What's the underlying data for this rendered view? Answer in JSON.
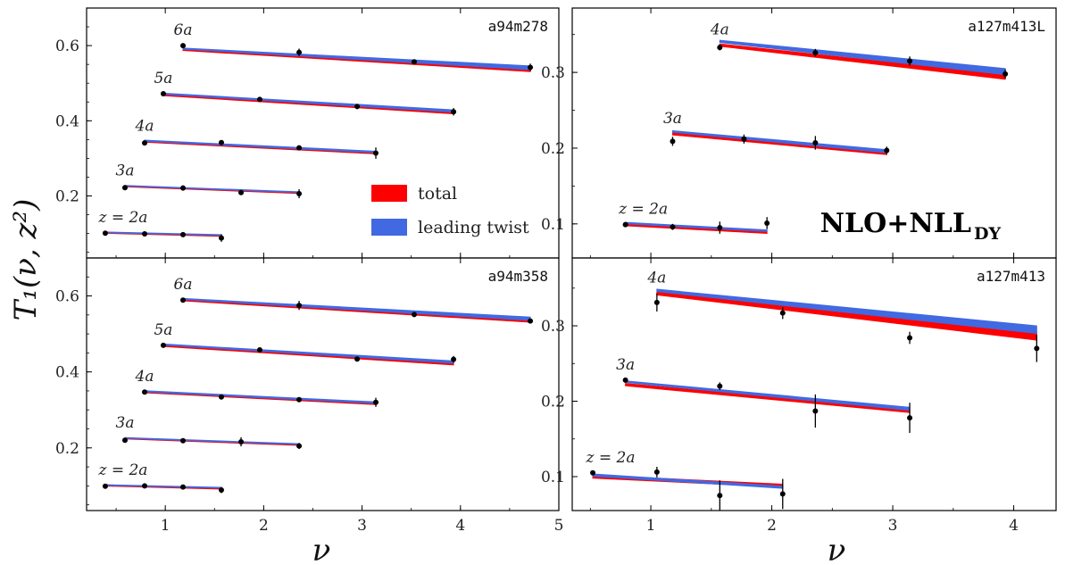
{
  "figure": {
    "x_axis_label": "ν",
    "y_axis_label": "T₁(ν, z²)",
    "method_label_main": "NLO+NLL",
    "method_label_sub": "DY",
    "legend": [
      {
        "label": "total",
        "color": "#ff0000"
      },
      {
        "label": "leading twist",
        "color": "#4169e1"
      }
    ],
    "colors": {
      "total": "#ff0000",
      "leading_twist": "#4169e1",
      "data": "#000000",
      "frame": "#000000"
    }
  },
  "chart_data": [
    {
      "type": "line",
      "panel": "a94m278",
      "ensemble_label": "a94m278",
      "xlim": [
        0.2,
        5.0
      ],
      "ylim": [
        0.035,
        0.7
      ],
      "yticks": [
        0.2,
        0.4,
        0.6
      ],
      "ytick_labels": [
        "0.2",
        "0.4",
        "0.6"
      ],
      "xticks": [],
      "xtick_labels": [],
      "series": [
        {
          "z_label": "z = 2a",
          "points": [
            {
              "x": 0.39,
              "y": 0.101,
              "err": 0.003
            },
            {
              "x": 0.79,
              "y": 0.099,
              "err": 0.003
            },
            {
              "x": 1.18,
              "y": 0.097,
              "err": 0.004
            },
            {
              "x": 1.57,
              "y": 0.088,
              "err": 0.01
            }
          ],
          "total": {
            "x": [
              0.39,
              1.57
            ],
            "y": [
              0.102,
              0.094
            ],
            "w": [
              0.003,
              0.003
            ]
          },
          "leading_twist": {
            "x": [
              0.39,
              1.57
            ],
            "y": [
              0.103,
              0.096
            ],
            "w": [
              0.002,
              0.002
            ]
          }
        },
        {
          "z_label": "3a",
          "points": [
            {
              "x": 0.59,
              "y": 0.222,
              "err": 0.004
            },
            {
              "x": 1.18,
              "y": 0.221,
              "err": 0.007
            },
            {
              "x": 1.77,
              "y": 0.209,
              "err": 0.004
            },
            {
              "x": 2.36,
              "y": 0.206,
              "err": 0.012
            }
          ],
          "total": {
            "x": [
              0.59,
              2.36
            ],
            "y": [
              0.226,
              0.208
            ],
            "w": [
              0.003,
              0.003
            ]
          },
          "leading_twist": {
            "x": [
              0.59,
              2.36
            ],
            "y": [
              0.227,
              0.21
            ],
            "w": [
              0.002,
              0.002
            ]
          }
        },
        {
          "z_label": "4a",
          "points": [
            {
              "x": 0.79,
              "y": 0.341,
              "err": 0.004
            },
            {
              "x": 1.57,
              "y": 0.342,
              "err": 0.005
            },
            {
              "x": 2.36,
              "y": 0.328,
              "err": 0.004
            },
            {
              "x": 3.14,
              "y": 0.314,
              "err": 0.015
            }
          ],
          "total": {
            "x": [
              0.79,
              3.14
            ],
            "y": [
              0.345,
              0.314
            ],
            "w": [
              0.004,
              0.004
            ]
          },
          "leading_twist": {
            "x": [
              0.79,
              3.14
            ],
            "y": [
              0.347,
              0.317
            ],
            "w": [
              0.003,
              0.004
            ]
          }
        },
        {
          "z_label": "5a",
          "points": [
            {
              "x": 0.98,
              "y": 0.472,
              "err": 0.004
            },
            {
              "x": 1.96,
              "y": 0.457,
              "err": 0.004
            },
            {
              "x": 2.95,
              "y": 0.438,
              "err": 0.007
            },
            {
              "x": 3.93,
              "y": 0.424,
              "err": 0.01
            }
          ],
          "total": {
            "x": [
              0.98,
              3.93
            ],
            "y": [
              0.469,
              0.421
            ],
            "w": [
              0.004,
              0.005
            ]
          },
          "leading_twist": {
            "x": [
              0.98,
              3.93
            ],
            "y": [
              0.472,
              0.426
            ],
            "w": [
              0.003,
              0.006
            ]
          }
        },
        {
          "z_label": "6a",
          "points": [
            {
              "x": 1.18,
              "y": 0.6,
              "err": 0.004
            },
            {
              "x": 2.36,
              "y": 0.582,
              "err": 0.01
            },
            {
              "x": 3.53,
              "y": 0.557,
              "err": 0.006
            },
            {
              "x": 4.71,
              "y": 0.542,
              "err": 0.01
            }
          ],
          "total": {
            "x": [
              1.18,
              4.71
            ],
            "y": [
              0.589,
              0.534
            ],
            "w": [
              0.004,
              0.006
            ]
          },
          "leading_twist": {
            "x": [
              1.18,
              4.71
            ],
            "y": [
              0.592,
              0.541
            ],
            "w": [
              0.003,
              0.01
            ]
          }
        }
      ]
    },
    {
      "type": "line",
      "panel": "a127m413L",
      "ensemble_label": "a127m413L",
      "xlim": [
        0.35,
        4.35
      ],
      "ylim": [
        0.055,
        0.385
      ],
      "yticks": [
        0.1,
        0.2,
        0.3
      ],
      "ytick_labels": [
        "0.1",
        "0.2",
        "0.3"
      ],
      "xticks": [],
      "xtick_labels": [],
      "series": [
        {
          "z_label": "z = 2a",
          "points": [
            {
              "x": 0.79,
              "y": 0.099,
              "err": 0.003
            },
            {
              "x": 1.18,
              "y": 0.096,
              "err": 0.004
            },
            {
              "x": 1.57,
              "y": 0.095,
              "err": 0.008
            },
            {
              "x": 1.96,
              "y": 0.101,
              "err": 0.008
            }
          ],
          "total": {
            "x": [
              0.79,
              1.96
            ],
            "y": [
              0.099,
              0.089
            ],
            "w": [
              0.003,
              0.003
            ]
          },
          "leading_twist": {
            "x": [
              0.79,
              1.96
            ],
            "y": [
              0.101,
              0.091
            ],
            "w": [
              0.002,
              0.002
            ]
          }
        },
        {
          "z_label": "3a",
          "points": [
            {
              "x": 1.18,
              "y": 0.209,
              "err": 0.006
            },
            {
              "x": 1.77,
              "y": 0.212,
              "err": 0.006
            },
            {
              "x": 2.36,
              "y": 0.207,
              "err": 0.009
            },
            {
              "x": 2.95,
              "y": 0.197,
              "err": 0.005
            }
          ],
          "total": {
            "x": [
              1.18,
              2.95
            ],
            "y": [
              0.219,
              0.193
            ],
            "w": [
              0.003,
              0.003
            ]
          },
          "leading_twist": {
            "x": [
              1.18,
              2.95
            ],
            "y": [
              0.222,
              0.196
            ],
            "w": [
              0.002,
              0.004
            ]
          }
        },
        {
          "z_label": "4a",
          "points": [
            {
              "x": 1.57,
              "y": 0.333,
              "err": 0.004
            },
            {
              "x": 2.36,
              "y": 0.326,
              "err": 0.005
            },
            {
              "x": 3.14,
              "y": 0.315,
              "err": 0.006
            },
            {
              "x": 3.93,
              "y": 0.298,
              "err": 0.006
            }
          ],
          "total": {
            "x": [
              1.57,
              3.93
            ],
            "y": [
              0.336,
              0.294
            ],
            "w": [
              0.003,
              0.006
            ]
          },
          "leading_twist": {
            "x": [
              1.57,
              3.93
            ],
            "y": [
              0.341,
              0.301
            ],
            "w": [
              0.003,
              0.008
            ]
          }
        }
      ]
    },
    {
      "type": "line",
      "panel": "a94m358",
      "ensemble_label": "a94m358",
      "xlim": [
        0.2,
        5.0
      ],
      "ylim": [
        0.035,
        0.7
      ],
      "yticks": [
        0.2,
        0.4,
        0.6
      ],
      "ytick_labels": [
        "0.2",
        "0.4",
        "0.6"
      ],
      "xticks": [
        1,
        2,
        3,
        4,
        5
      ],
      "xtick_labels": [
        "1",
        "2",
        "3",
        "4",
        "5"
      ],
      "series": [
        {
          "z_label": "z = 2a",
          "points": [
            {
              "x": 0.39,
              "y": 0.099,
              "err": 0.003
            },
            {
              "x": 0.79,
              "y": 0.1,
              "err": 0.003
            },
            {
              "x": 1.18,
              "y": 0.097,
              "err": 0.003
            },
            {
              "x": 1.57,
              "y": 0.089,
              "err": 0.008
            }
          ],
          "total": {
            "x": [
              0.39,
              1.57
            ],
            "y": [
              0.101,
              0.093
            ],
            "w": [
              0.003,
              0.003
            ]
          },
          "leading_twist": {
            "x": [
              0.39,
              1.57
            ],
            "y": [
              0.102,
              0.095
            ],
            "w": [
              0.002,
              0.002
            ]
          }
        },
        {
          "z_label": "3a",
          "points": [
            {
              "x": 0.59,
              "y": 0.22,
              "err": 0.003
            },
            {
              "x": 1.18,
              "y": 0.219,
              "err": 0.004
            },
            {
              "x": 1.77,
              "y": 0.216,
              "err": 0.012
            },
            {
              "x": 2.36,
              "y": 0.205,
              "err": 0.008
            }
          ],
          "total": {
            "x": [
              0.59,
              2.36
            ],
            "y": [
              0.225,
              0.208
            ],
            "w": [
              0.003,
              0.003
            ]
          },
          "leading_twist": {
            "x": [
              0.59,
              2.36
            ],
            "y": [
              0.226,
              0.21
            ],
            "w": [
              0.002,
              0.002
            ]
          }
        },
        {
          "z_label": "4a",
          "points": [
            {
              "x": 0.79,
              "y": 0.347,
              "err": 0.003
            },
            {
              "x": 1.57,
              "y": 0.334,
              "err": 0.004
            },
            {
              "x": 2.36,
              "y": 0.327,
              "err": 0.004
            },
            {
              "x": 3.14,
              "y": 0.32,
              "err": 0.012
            }
          ],
          "total": {
            "x": [
              0.79,
              3.14
            ],
            "y": [
              0.347,
              0.316
            ],
            "w": [
              0.004,
              0.004
            ]
          },
          "leading_twist": {
            "x": [
              0.79,
              3.14
            ],
            "y": [
              0.349,
              0.319
            ],
            "w": [
              0.003,
              0.004
            ]
          }
        },
        {
          "z_label": "5a",
          "points": [
            {
              "x": 0.98,
              "y": 0.47,
              "err": 0.003
            },
            {
              "x": 1.96,
              "y": 0.458,
              "err": 0.003
            },
            {
              "x": 2.95,
              "y": 0.434,
              "err": 0.006
            },
            {
              "x": 3.93,
              "y": 0.433,
              "err": 0.009
            }
          ],
          "total": {
            "x": [
              0.98,
              3.93
            ],
            "y": [
              0.469,
              0.421
            ],
            "w": [
              0.004,
              0.005
            ]
          },
          "leading_twist": {
            "x": [
              0.98,
              3.93
            ],
            "y": [
              0.472,
              0.426
            ],
            "w": [
              0.003,
              0.006
            ]
          }
        },
        {
          "z_label": "6a",
          "points": [
            {
              "x": 1.18,
              "y": 0.589,
              "err": 0.004
            },
            {
              "x": 2.36,
              "y": 0.575,
              "err": 0.012
            },
            {
              "x": 3.53,
              "y": 0.551,
              "err": 0.006
            },
            {
              "x": 4.71,
              "y": 0.534,
              "err": 0.005
            }
          ],
          "total": {
            "x": [
              1.18,
              4.71
            ],
            "y": [
              0.589,
              0.534
            ],
            "w": [
              0.004,
              0.006
            ]
          },
          "leading_twist": {
            "x": [
              1.18,
              4.71
            ],
            "y": [
              0.592,
              0.54
            ],
            "w": [
              0.003,
              0.009
            ]
          }
        }
      ]
    },
    {
      "type": "line",
      "panel": "a127m413",
      "ensemble_label": "a127m413",
      "xlim": [
        0.35,
        4.35
      ],
      "ylim": [
        0.055,
        0.39
      ],
      "yticks": [
        0.1,
        0.2,
        0.3
      ],
      "ytick_labels": [
        "0.1",
        "0.2",
        "0.3"
      ],
      "xticks": [
        1,
        2,
        3,
        4
      ],
      "xtick_labels": [
        "1",
        "2",
        "3",
        "4"
      ],
      "series": [
        {
          "z_label": "z = 2a",
          "points": [
            {
              "x": 0.52,
              "y": 0.105,
              "err": 0.003
            },
            {
              "x": 1.05,
              "y": 0.106,
              "err": 0.007
            },
            {
              "x": 1.57,
              "y": 0.075,
              "err": 0.02
            },
            {
              "x": 2.09,
              "y": 0.077,
              "err": 0.02
            }
          ],
          "total": {
            "x": [
              0.52,
              2.09
            ],
            "y": [
              0.1,
              0.088
            ],
            "w": [
              0.004,
              0.004
            ]
          },
          "leading_twist": {
            "x": [
              0.52,
              2.09
            ],
            "y": [
              0.102,
              0.086
            ],
            "w": [
              0.003,
              0.003
            ]
          }
        },
        {
          "z_label": "3a",
          "points": [
            {
              "x": 0.79,
              "y": 0.228,
              "err": 0.003
            },
            {
              "x": 1.57,
              "y": 0.22,
              "err": 0.005
            },
            {
              "x": 2.36,
              "y": 0.187,
              "err": 0.022
            },
            {
              "x": 3.14,
              "y": 0.178,
              "err": 0.02
            }
          ],
          "total": {
            "x": [
              0.79,
              3.14
            ],
            "y": [
              0.222,
              0.187
            ],
            "w": [
              0.003,
              0.004
            ]
          },
          "leading_twist": {
            "x": [
              0.79,
              3.14
            ],
            "y": [
              0.226,
              0.19
            ],
            "w": [
              0.002,
              0.004
            ]
          }
        },
        {
          "z_label": "4a",
          "points": [
            {
              "x": 1.05,
              "y": 0.331,
              "err": 0.012
            },
            {
              "x": 2.09,
              "y": 0.317,
              "err": 0.008
            },
            {
              "x": 3.14,
              "y": 0.284,
              "err": 0.008
            },
            {
              "x": 4.19,
              "y": 0.27,
              "err": 0.018
            }
          ],
          "total": {
            "x": [
              1.05,
              4.19
            ],
            "y": [
              0.343,
              0.286
            ],
            "w": [
              0.004,
              0.01
            ]
          },
          "leading_twist": {
            "x": [
              1.05,
              4.19
            ],
            "y": [
              0.347,
              0.295
            ],
            "w": [
              0.003,
              0.01
            ]
          }
        }
      ]
    }
  ]
}
